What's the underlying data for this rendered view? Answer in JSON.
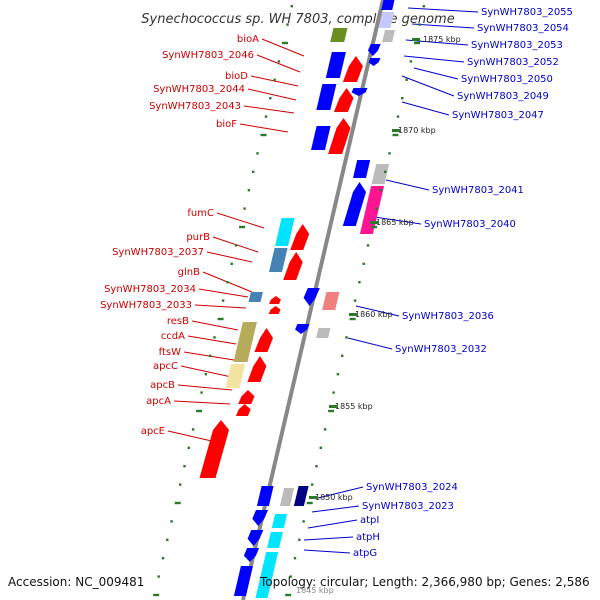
{
  "title": "Synechococcus sp. WH 7803, complete genome",
  "accession": "Accession: NC_009481",
  "summary": "Topology: circular; Length: 2,366,980 bp; Genes: 2,586",
  "colors": {
    "left_label": "#cc0000",
    "right_label": "#0000cc",
    "backbone": "#888888",
    "tick": "#2a7a2a",
    "forward_gene": "#ff0000",
    "reverse_gene": "#0000ff",
    "rna": "#00e5ff",
    "olive": "#b5ab5a",
    "pale": "#f3e3a0",
    "magenta": "#ff1493",
    "grey": "#bbbbbb",
    "salmon": "#f08080",
    "steel": "#4682b4",
    "pale_blue": "#c8c8ff",
    "dark_navy": "#000080",
    "green": "#6b8e23"
  },
  "position_ticks": [
    "1875 kbp",
    "1870 kbp",
    "1865 kbp",
    "1860 kbp",
    "1855 kbp",
    "1850 kbp",
    "1845 kbp"
  ],
  "left_labels": [
    "bioA",
    "SynWH7803_2046",
    "bioD",
    "SynWH7803_2044",
    "SynWH7803_2043",
    "bioF",
    "fumC",
    "purB",
    "SynWH7803_2037",
    "glnB",
    "SynWH7803_2034",
    "SynWH7803_2033",
    "resB",
    "ccdA",
    "ftsW",
    "apcC",
    "apcB",
    "apcA",
    "apcE"
  ],
  "right_labels": [
    "SynWH7803_2055",
    "SynWH7803_2054",
    "SynWH7803_2053",
    "SynWH7803_2052",
    "SynWH7803_2050",
    "SynWH7803_2049",
    "SynWH7803_2047",
    "SynWH7803_2041",
    "SynWH7803_2040",
    "SynWH7803_2036",
    "SynWH7803_2032",
    "SynWH7803_2024",
    "SynWH7803_2023",
    "atpI",
    "atpH",
    "atpG"
  ]
}
